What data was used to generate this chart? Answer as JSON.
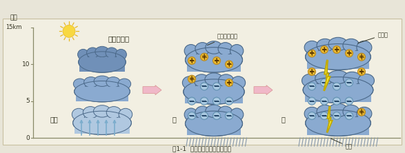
{
  "bg_color": "#e8e5d8",
  "panel_color": "#f2efe2",
  "axis_label_height": "高さ",
  "axis_label_km": "15km",
  "axis_ticks": [
    0,
    5,
    10
  ],
  "cloud_dark": "#7090b8",
  "cloud_mid": "#8aaad0",
  "cloud_light": "#b0c8e0",
  "cloud_outline": "#4a6888",
  "cloud_darkest": "#5a7898",
  "plus_fill": "#e8b830",
  "plus_outline": "#b88820",
  "minus_fill": "#a8c8e0",
  "minus_outline": "#6090b0",
  "arrow_fill": "#f0b8c8",
  "arrow_outline": "#d89090",
  "lightning_fill": "#f8e830",
  "lightning_outline": "#c0a800",
  "rain_color": "#8899aa",
  "upflow_color": "#7aaccc",
  "sun_fill": "#f8d840",
  "sun_ray": "#e8b820",
  "ground_color": "#999977",
  "text_dark": "#333322",
  "label1": "雷雲の発生",
  "label2_top": "電気（荷電）",
  "label3_top": "雲放電",
  "label_kairyu": "気流",
  "label_ame2": "雨",
  "label_ame3": "雨",
  "label_rakurai": "落雷",
  "caption": "図1-1  雷雲の発生と電荷の分布"
}
